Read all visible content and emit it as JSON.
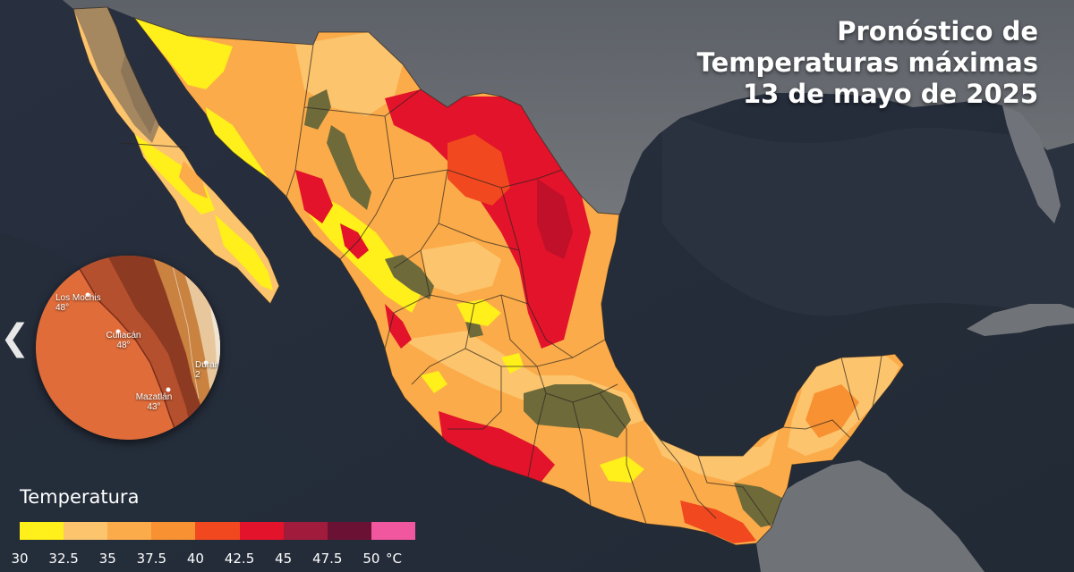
{
  "title": {
    "line1": "Pronóstico de",
    "line2": "Temperaturas máximas",
    "line3": "13 de mayo de 2025"
  },
  "legend": {
    "title": "Temperatura",
    "colors": [
      "#ffef1a",
      "#fcc46c",
      "#fbab49",
      "#f89132",
      "#f1481f",
      "#e2132a",
      "#a01b3c",
      "#6b1234",
      "#f0579f"
    ],
    "ticks": [
      "30",
      "32.5",
      "35",
      "37.5",
      "40",
      "42.5",
      "45",
      "47.5",
      "50",
      "°C"
    ]
  },
  "inset": {
    "cities": [
      {
        "name": "Los Mochis",
        "temp": "48°"
      },
      {
        "name": "Culiacán",
        "temp": "48°"
      },
      {
        "name": "Mazatlán",
        "temp": "43°"
      },
      {
        "name": "Durango",
        "temp": "2"
      }
    ]
  },
  "nav": {
    "prev_icon": "❮"
  },
  "colors": {
    "ocean": "#2a3038",
    "land_outside": "#6b6f74",
    "yellow": "#ffef1a",
    "light_orange": "#fcc46c",
    "orange": "#f89132",
    "red": "#e2132a",
    "olive": "#6e6a3a"
  }
}
